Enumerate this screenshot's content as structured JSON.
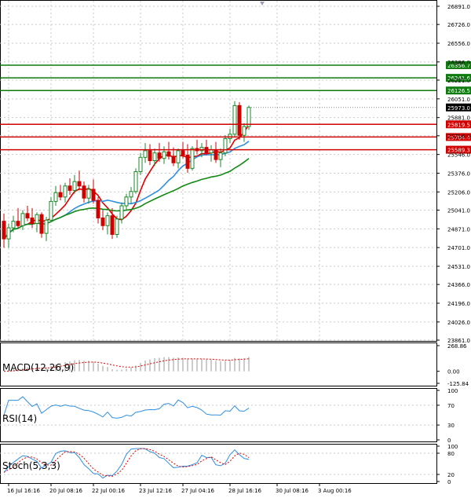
{
  "chart_data": {
    "type": "candlestick",
    "colors": {
      "bull": "#1a8a2a",
      "bear": "#d10000",
      "ma_red": "#e00000",
      "ma_blue": "#2f8fe0",
      "ma_green": "#138a13",
      "macd_signal": "#e00000",
      "rsi": "#2f8fe0",
      "stoch_main": "#2f8fe0",
      "stoch_signal": "#e00000",
      "support_line": "#d10000",
      "resistance_line": "#0f7a0f",
      "current_price_box": "#000000"
    },
    "price_axis": {
      "ylim": [
        23861.0,
        26891.0
      ],
      "ticks": [
        "26891.0",
        "26726.0",
        "26556.0",
        "26386.0",
        "26221.0",
        "26051.0",
        "25881.0",
        "25716.0",
        "25546.0",
        "25376.0",
        "25206.0",
        "25041.0",
        "24871.0",
        "24701.0",
        "24531.0",
        "24366.0",
        "24196.0",
        "24026.0",
        "23861.0"
      ]
    },
    "levels": [
      {
        "label": "26356.7",
        "value": 26356.7,
        "kind": "resistance"
      },
      {
        "label": "26241.6",
        "value": 26241.6,
        "kind": "resistance"
      },
      {
        "label": "26126.5",
        "value": 26126.5,
        "kind": "resistance"
      },
      {
        "label": "25819.5",
        "value": 25819.5,
        "kind": "support"
      },
      {
        "label": "25704.4",
        "value": 25704.4,
        "kind": "support"
      },
      {
        "label": "25589.3",
        "value": 25589.3,
        "kind": "support"
      }
    ],
    "current_price": {
      "label": "25973.0",
      "value": 25973.0
    },
    "time_axis": {
      "labels": [
        "16 Jul 16:16",
        "20 Jul 08:16",
        "22 Jul 00:16",
        "23 Jul 12:16",
        "27 Jul 04:16",
        "28 Jul 16:16",
        "30 Jul 08:16",
        "3 Aug 00:16"
      ],
      "label_bar_index": [
        1,
        10,
        19,
        29,
        38,
        48,
        58,
        67
      ]
    },
    "candles": [
      [
        24940,
        25010,
        24700,
        24780
      ],
      [
        24780,
        24920,
        24700,
        24880
      ],
      [
        24880,
        24990,
        24840,
        24940
      ],
      [
        24940,
        25060,
        24880,
        24900
      ],
      [
        24900,
        25040,
        24860,
        25010
      ],
      [
        25010,
        25080,
        24940,
        24970
      ],
      [
        24970,
        25060,
        24880,
        24920
      ],
      [
        24920,
        25020,
        24840,
        25000
      ],
      [
        25000,
        25020,
        24790,
        24830
      ],
      [
        24830,
        24980,
        24760,
        24950
      ],
      [
        24950,
        25160,
        24930,
        25120
      ],
      [
        25120,
        25260,
        25080,
        25200
      ],
      [
        25200,
        25270,
        25130,
        25160
      ],
      [
        25160,
        25290,
        25110,
        25260
      ],
      [
        25260,
        25330,
        25180,
        25220
      ],
      [
        25220,
        25360,
        25190,
        25300
      ],
      [
        25300,
        25400,
        25220,
        25260
      ],
      [
        25260,
        25300,
        25110,
        25150
      ],
      [
        25150,
        25270,
        25100,
        25230
      ],
      [
        25230,
        25320,
        25100,
        25130
      ],
      [
        25130,
        25160,
        24920,
        24970
      ],
      [
        24970,
        25040,
        24860,
        24900
      ],
      [
        24900,
        25020,
        24820,
        24990
      ],
      [
        24990,
        25060,
        24780,
        24820
      ],
      [
        24820,
        24990,
        24790,
        24960
      ],
      [
        24960,
        25110,
        24920,
        25080
      ],
      [
        25080,
        25190,
        25040,
        25160
      ],
      [
        25160,
        25250,
        25100,
        25210
      ],
      [
        25210,
        25420,
        25190,
        25390
      ],
      [
        25390,
        25560,
        25360,
        25520
      ],
      [
        25520,
        25650,
        25470,
        25580
      ],
      [
        25580,
        25640,
        25450,
        25490
      ],
      [
        25490,
        25600,
        25440,
        25560
      ],
      [
        25560,
        25650,
        25480,
        25510
      ],
      [
        25510,
        25620,
        25460,
        25570
      ],
      [
        25570,
        25660,
        25500,
        25530
      ],
      [
        25530,
        25610,
        25440,
        25470
      ],
      [
        25470,
        25600,
        25420,
        25580
      ],
      [
        25580,
        25660,
        25510,
        25540
      ],
      [
        25540,
        25640,
        25380,
        25420
      ],
      [
        25420,
        25620,
        25400,
        25600
      ],
      [
        25600,
        25680,
        25550,
        25580
      ],
      [
        25580,
        25650,
        25520,
        25610
      ],
      [
        25610,
        25680,
        25540,
        25560
      ],
      [
        25560,
        25630,
        25480,
        25590
      ],
      [
        25590,
        25660,
        25470,
        25500
      ],
      [
        25500,
        25600,
        25430,
        25560
      ],
      [
        25560,
        25720,
        25530,
        25690
      ],
      [
        25690,
        25780,
        25650,
        25730
      ],
      [
        25730,
        26030,
        25700,
        25990
      ],
      [
        25990,
        26020,
        25680,
        25720
      ],
      [
        25720,
        25830,
        25660,
        25800
      ],
      [
        25800,
        25990,
        25770,
        25973
      ]
    ],
    "indicators": [
      {
        "name": "MACD(12,26,9)",
        "axis_ticks": [
          "268.86",
          "0.00",
          "-125.84"
        ],
        "ylim": [
          -125.84,
          268.86
        ]
      },
      {
        "name": "RSI(14)",
        "axis_ticks": [
          "100",
          "70",
          "30",
          "0"
        ],
        "ylim": [
          0,
          100
        ]
      },
      {
        "name": "Stoch(5,3,3)",
        "axis_ticks": [
          "100",
          "80",
          "20",
          "0"
        ],
        "ylim": [
          0,
          100
        ]
      }
    ]
  }
}
